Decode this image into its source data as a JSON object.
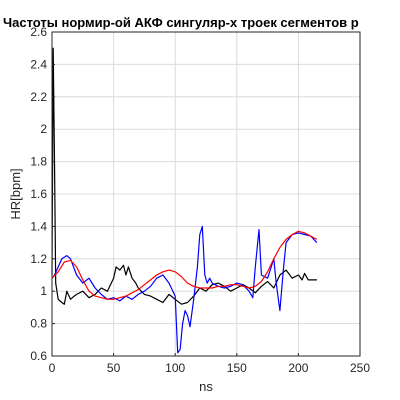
{
  "chart_data": {
    "type": "line",
    "title": "Частоты нормир-ой АКФ сингуляр-х троек сегментов р",
    "xlabel": "ns",
    "ylabel": "HR[bpm]",
    "xlim": [
      0,
      250
    ],
    "ylim": [
      0.6,
      2.6
    ],
    "xticks": [
      0,
      50,
      100,
      150,
      200,
      250
    ],
    "yticks": [
      0.6,
      0.8,
      1,
      1.2,
      1.4,
      1.6,
      1.8,
      2,
      2.2,
      2.4,
      2.6
    ],
    "xtick_labels": [
      "0",
      "50",
      "100",
      "150",
      "200",
      "250"
    ],
    "ytick_labels": [
      "0.6",
      "0.8",
      "1",
      "1.2",
      "1.4",
      "1.6",
      "1.8",
      "2",
      "2.2",
      "2.4",
      "2.6"
    ],
    "grid": true,
    "series": [
      {
        "color": "#000000",
        "x": [
          0,
          1,
          2,
          3,
          5,
          8,
          10,
          12,
          15,
          18,
          20,
          25,
          30,
          35,
          40,
          45,
          50,
          52,
          55,
          58,
          60,
          62,
          65,
          68,
          70,
          75,
          80,
          85,
          90,
          95,
          100,
          105,
          110,
          115,
          120,
          125,
          130,
          135,
          140,
          145,
          150,
          155,
          160,
          165,
          170,
          175,
          180,
          185,
          190,
          195,
          200,
          203,
          205,
          208,
          210,
          215
        ],
        "y": [
          1.1,
          2.5,
          1.8,
          1.05,
          0.95,
          0.93,
          0.92,
          1.0,
          0.95,
          0.97,
          0.98,
          1.0,
          0.96,
          0.98,
          1.02,
          1.0,
          1.08,
          1.15,
          1.13,
          1.16,
          1.1,
          1.15,
          1.08,
          1.05,
          1.02,
          0.98,
          0.97,
          0.95,
          0.93,
          0.98,
          0.95,
          0.92,
          0.93,
          0.97,
          1.02,
          1.0,
          1.04,
          1.05,
          1.03,
          1.0,
          1.02,
          1.04,
          1.02,
          0.99,
          1.03,
          1.06,
          1.02,
          1.1,
          1.13,
          1.08,
          1.1,
          1.07,
          1.11,
          1.07,
          1.07,
          1.07
        ]
      },
      {
        "color": "#0000ff",
        "x": [
          0,
          2,
          5,
          8,
          12,
          15,
          20,
          25,
          30,
          35,
          40,
          45,
          50,
          55,
          60,
          65,
          70,
          75,
          80,
          85,
          90,
          95,
          100,
          102,
          104,
          106,
          108,
          110,
          112,
          115,
          118,
          120,
          122,
          124,
          126,
          128,
          130,
          135,
          140,
          145,
          150,
          155,
          160,
          163,
          165,
          168,
          170,
          175,
          180,
          182,
          185,
          188,
          190,
          195,
          200,
          205,
          210,
          215
        ],
        "y": [
          1.08,
          1.1,
          1.15,
          1.2,
          1.22,
          1.2,
          1.1,
          1.05,
          1.08,
          1.02,
          0.98,
          0.95,
          0.96,
          0.94,
          0.97,
          0.95,
          0.98,
          1.0,
          1.03,
          1.08,
          1.1,
          1.05,
          0.97,
          0.62,
          0.64,
          0.8,
          0.88,
          0.85,
          0.78,
          0.95,
          1.15,
          1.35,
          1.4,
          1.1,
          1.05,
          1.08,
          1.05,
          1.03,
          1.02,
          1.03,
          1.05,
          1.04,
          1.0,
          0.96,
          1.15,
          1.38,
          1.1,
          1.08,
          1.2,
          1.05,
          0.88,
          1.15,
          1.3,
          1.35,
          1.36,
          1.35,
          1.34,
          1.3
        ]
      },
      {
        "color": "#ff0000",
        "x": [
          0,
          5,
          10,
          15,
          20,
          25,
          30,
          35,
          40,
          45,
          50,
          55,
          60,
          65,
          70,
          75,
          80,
          85,
          90,
          95,
          100,
          105,
          110,
          115,
          120,
          125,
          130,
          135,
          140,
          145,
          150,
          155,
          160,
          165,
          170,
          175,
          180,
          185,
          190,
          195,
          200,
          205,
          210,
          215
        ],
        "y": [
          1.08,
          1.12,
          1.18,
          1.19,
          1.15,
          1.07,
          1.0,
          0.97,
          0.96,
          0.95,
          0.95,
          0.96,
          0.97,
          0.99,
          1.01,
          1.04,
          1.07,
          1.1,
          1.12,
          1.13,
          1.12,
          1.09,
          1.05,
          1.03,
          1.02,
          1.02,
          1.02,
          1.03,
          1.03,
          1.04,
          1.04,
          1.03,
          1.02,
          1.03,
          1.06,
          1.12,
          1.2,
          1.27,
          1.32,
          1.35,
          1.37,
          1.36,
          1.34,
          1.32
        ]
      }
    ]
  }
}
